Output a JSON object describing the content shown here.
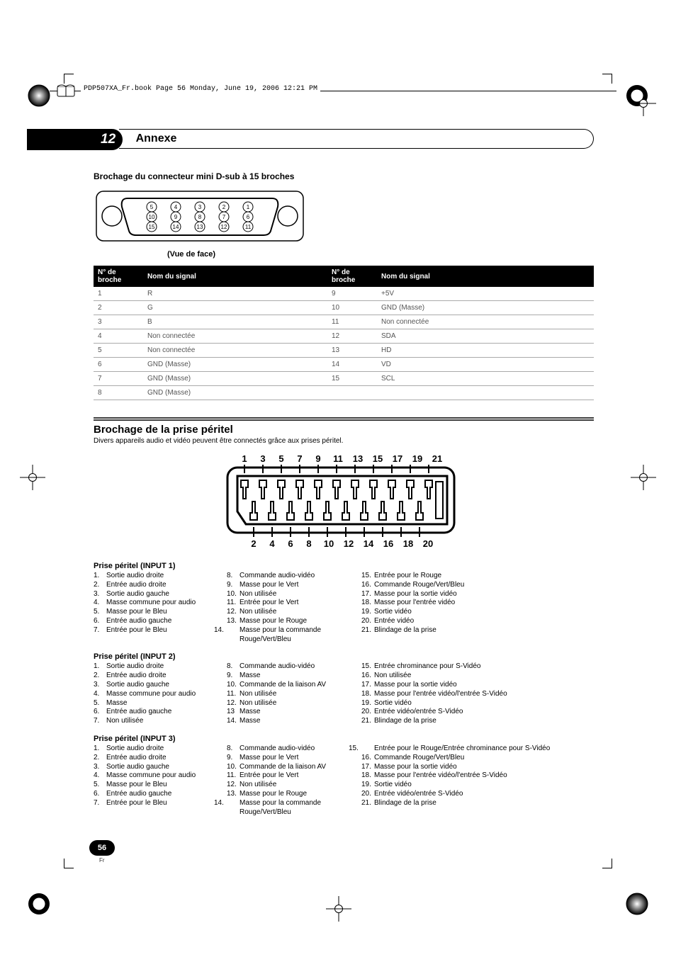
{
  "book_tag": "PDP507XA_Fr.book  Page 56  Monday, June 19, 2006  12:21 PM",
  "chapter": {
    "number": "12",
    "title": "Annexe"
  },
  "dsub": {
    "heading": "Brochage du connecteur mini D-sub à 15 broches",
    "caption": "(Vue de face)",
    "pin_labels": [
      "1",
      "2",
      "3",
      "4",
      "5",
      "6",
      "7",
      "8",
      "9",
      "10",
      "11",
      "12",
      "13",
      "14",
      "15"
    ],
    "table": {
      "headers": [
        "N° de broche",
        "Nom du signal",
        "N° de broche",
        "Nom du signal"
      ],
      "rows": [
        [
          "1",
          "R",
          "9",
          "+5V"
        ],
        [
          "2",
          "G",
          "10",
          "GND (Masse)"
        ],
        [
          "3",
          "B",
          "11",
          "Non connectée"
        ],
        [
          "4",
          "Non connectée",
          "12",
          "SDA"
        ],
        [
          "5",
          "Non connectée",
          "13",
          "HD"
        ],
        [
          "6",
          "GND (Masse)",
          "14",
          "VD"
        ],
        [
          "7",
          "GND (Masse)",
          "15",
          "SCL"
        ],
        [
          "8",
          "GND (Masse)",
          "",
          ""
        ]
      ]
    }
  },
  "scart": {
    "title": "Brochage de la prise péritel",
    "subtitle": "Divers appareils audio et vidéo peuvent être connectés grâce aux prises péritel.",
    "top_numbers": "1  3  5  7  9 11 13 15 17 19 21",
    "bottom_numbers": "2  4  6  8 10 12 14 16 18 20",
    "inputs": [
      {
        "heading": "Prise péritel (INPUT 1)",
        "colA": [
          {
            "n": "1.",
            "t": "Sortie audio droite"
          },
          {
            "n": "2.",
            "t": "Entrée audio droite"
          },
          {
            "n": "3.",
            "t": "Sortie audio gauche"
          },
          {
            "n": "4.",
            "t": "Masse commune pour audio"
          },
          {
            "n": "5.",
            "t": "Masse pour le Bleu"
          },
          {
            "n": "6.",
            "t": "Entrée audio gauche"
          },
          {
            "n": "7.",
            "t": "Entrée pour le Bleu"
          }
        ],
        "colB": [
          {
            "n": "8.",
            "t": "Commande audio-vidéo"
          },
          {
            "n": "9.",
            "t": "Masse pour le Vert"
          },
          {
            "n": "10.",
            "t": "Non utilisée"
          },
          {
            "n": "11.",
            "t": "Entrée pour le Vert"
          },
          {
            "n": "12.",
            "t": "Non utilisée"
          },
          {
            "n": "13.",
            "t": "Masse pour le Rouge"
          },
          {
            "n": "14.",
            "t": "Masse pour la commande Rouge/Vert/Bleu",
            "wrap": true
          }
        ],
        "colC": [
          {
            "n": "15.",
            "t": "Entrée pour le Rouge"
          },
          {
            "n": "16.",
            "t": "Commande Rouge/Vert/Bleu"
          },
          {
            "n": "17.",
            "t": "Masse pour la sortie vidéo"
          },
          {
            "n": "18.",
            "t": "Masse pour l'entrée vidéo"
          },
          {
            "n": "19.",
            "t": "Sortie vidéo"
          },
          {
            "n": "20.",
            "t": "Entrée vidéo"
          },
          {
            "n": "21.",
            "t": "Blindage de la prise"
          }
        ]
      },
      {
        "heading": "Prise péritel (INPUT 2)",
        "colA": [
          {
            "n": "1.",
            "t": "Sortie audio droite"
          },
          {
            "n": "2.",
            "t": "Entrée audio droite"
          },
          {
            "n": "3.",
            "t": "Sortie audio gauche"
          },
          {
            "n": "4.",
            "t": "Masse commune pour audio"
          },
          {
            "n": "5.",
            "t": "Masse"
          },
          {
            "n": "6.",
            "t": "Entrée audio gauche"
          },
          {
            "n": "7.",
            "t": "Non utilisée"
          }
        ],
        "colB": [
          {
            "n": "8.",
            "t": "Commande audio-vidéo"
          },
          {
            "n": "9.",
            "t": "Masse"
          },
          {
            "n": "10.",
            "t": "Commande de la liaison AV"
          },
          {
            "n": "11.",
            "t": "Non utilisée"
          },
          {
            "n": "12.",
            "t": "Non utilisée"
          },
          {
            "n": "13",
            "t": "Masse"
          },
          {
            "n": "14.",
            "t": "Masse"
          }
        ],
        "colC": [
          {
            "n": "15.",
            "t": "Entrée chrominance pour S-Vidéo"
          },
          {
            "n": "16.",
            "t": "Non utilisée"
          },
          {
            "n": "17.",
            "t": "Masse pour la sortie vidéo"
          },
          {
            "n": "18.",
            "t": "Masse pour l'entrée vidéo/l'entrée S-Vidéo"
          },
          {
            "n": "19.",
            "t": "Sortie vidéo"
          },
          {
            "n": "20.",
            "t": "Entrée vidéo/entrée S-Vidéo"
          },
          {
            "n": "21.",
            "t": "Blindage de la prise",
            "tight": true
          }
        ]
      },
      {
        "heading": "Prise péritel (INPUT 3)",
        "colA": [
          {
            "n": "1.",
            "t": "Sortie audio droite"
          },
          {
            "n": "2.",
            "t": "Entrée audio droite"
          },
          {
            "n": "3.",
            "t": "Sortie audio gauche"
          },
          {
            "n": "4.",
            "t": "Masse commune pour audio"
          },
          {
            "n": "5.",
            "t": "Masse pour le Bleu"
          },
          {
            "n": "6.",
            "t": "Entrée audio gauche"
          },
          {
            "n": "7.",
            "t": "Entrée pour le Bleu"
          }
        ],
        "colB": [
          {
            "n": "8.",
            "t": "Commande audio-vidéo"
          },
          {
            "n": "9.",
            "t": "Masse pour le Vert"
          },
          {
            "n": "10.",
            "t": "Commande de la liaison AV"
          },
          {
            "n": "11.",
            "t": "Entrée pour le Vert"
          },
          {
            "n": "12.",
            "t": "Non utilisée"
          },
          {
            "n": "13.",
            "t": "Masse pour le Rouge"
          },
          {
            "n": "14.",
            "t": "Masse pour la commande Rouge/Vert/Bleu",
            "wrap": true
          }
        ],
        "colC": [
          {
            "n": "15.",
            "t": "Entrée pour le Rouge/Entrée chrominance pour S-Vidéo",
            "wrap": true
          },
          {
            "n": "16.",
            "t": "Commande Rouge/Vert/Bleu"
          },
          {
            "n": "17.",
            "t": "Masse pour la sortie vidéo"
          },
          {
            "n": "18.",
            "t": "Masse pour l'entrée vidéo/l'entrée S-Vidéo"
          },
          {
            "n": "19.",
            "t": "Sortie vidéo"
          },
          {
            "n": "20.",
            "t": "Entrée vidéo/entrée S-Vidéo"
          },
          {
            "n": "21.",
            "t": "Blindage de la prise"
          }
        ]
      }
    ]
  },
  "page": {
    "number": "56",
    "lang": "Fr"
  },
  "colors": {
    "black": "#000000",
    "grey_text": "#555555",
    "grid": "#aaaaaa",
    "white": "#ffffff"
  }
}
